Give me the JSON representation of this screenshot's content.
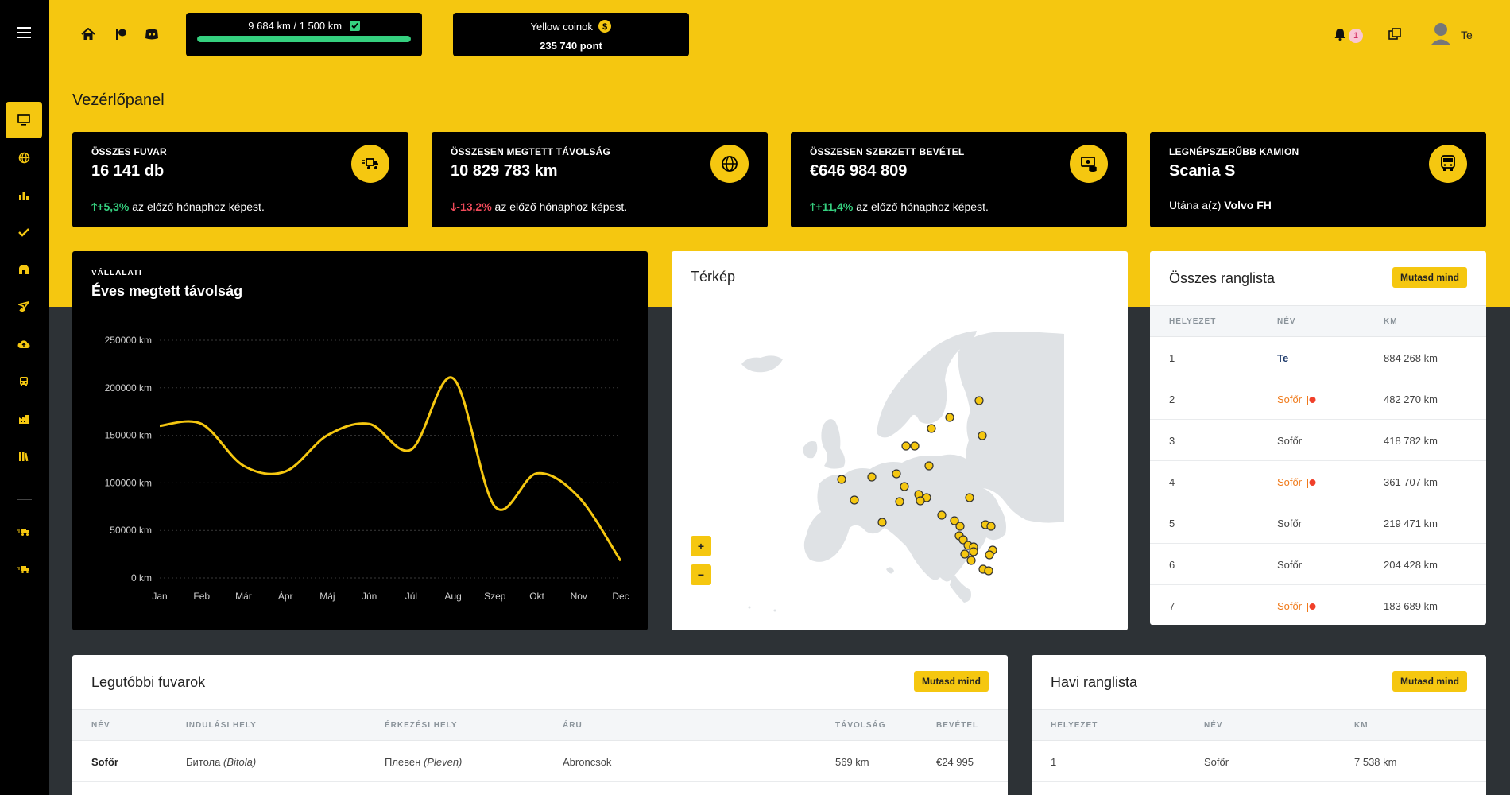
{
  "topbar": {
    "progress_text": "9 684 km / 1 500 km",
    "progress_fraction": 1.0,
    "coins_label": "Yellow coinok",
    "coins_points": "235 740 pont",
    "notification_count": "1",
    "user_name": "Te",
    "icons": [
      "menu-icon",
      "home-icon",
      "flag-icon",
      "discord-icon",
      "check-square-icon",
      "coin-icon",
      "bell-icon",
      "windows-icon",
      "user-avatar-icon"
    ]
  },
  "sidebar": {
    "items": [
      "monitor-icon",
      "globe-icon",
      "bar-chart-icon",
      "check-icon",
      "shop-icon",
      "rocket-icon",
      "cloud-upload-icon",
      "bus-icon",
      "factory-icon",
      "library-icon",
      "truck-fast-icon",
      "truck-fast-icon"
    ]
  },
  "page": {
    "title": "Vezérlőpanel"
  },
  "stats": [
    {
      "label": "ÖSSZES FUVAR",
      "value": "16 141 db",
      "change": "+5,3%",
      "direction": "up",
      "suffix": "az előző hónaphoz képest.",
      "icon": "truck-fast-icon"
    },
    {
      "label": "ÖSSZESEN MEGTETT TÁVOLSÁG",
      "value": "10 829 783 km",
      "change": "-13,2%",
      "direction": "down",
      "suffix": "az előző hónaphoz képest.",
      "icon": "globe-icon"
    },
    {
      "label": "ÖSSZESEN SZERZETT BEVÉTEL",
      "value": "€646 984 809",
      "change": "+11,4%",
      "direction": "up",
      "suffix": "az előző hónaphoz képest.",
      "icon": "money-icon"
    },
    {
      "label": "LEGNÉPSZERŰBB KAMION",
      "value": "Scania S",
      "prefix": "Utána a(z)",
      "runner_up": "Volvo FH",
      "icon": "bus-icon"
    }
  ],
  "chart": {
    "supertitle": "VÁLLALATI",
    "title": "Éves megtett távolság"
  },
  "chart_data": {
    "type": "line",
    "categories": [
      "Jan",
      "Feb",
      "Már",
      "Ápr",
      "Máj",
      "Jún",
      "Júl",
      "Aug",
      "Szep",
      "Okt",
      "Nov",
      "Dec"
    ],
    "values": [
      160000,
      162000,
      118000,
      112000,
      150000,
      162000,
      135000,
      210000,
      75000,
      110000,
      85000,
      18000
    ],
    "ylim": [
      0,
      250000
    ],
    "yticks": [
      "250000 km",
      "200000 km",
      "150000 km",
      "100000 km",
      "50000 km",
      "0 km"
    ],
    "ytick_values": [
      250000,
      200000,
      150000,
      100000,
      50000,
      0
    ],
    "color": "#f5c710",
    "grid": true
  },
  "map": {
    "title": "Térkép",
    "zoom_in": "+",
    "zoom_out": "−",
    "marker_color": "#f5c710"
  },
  "overall_leaderboard": {
    "title": "Összes ranglista",
    "button": "Mutasd mind",
    "headers": [
      "HELYEZET",
      "NÉV",
      "KM"
    ],
    "rows": [
      {
        "rank": "1",
        "name": "Te",
        "km": "884 268 km",
        "style": "self"
      },
      {
        "rank": "2",
        "name": "Sofőr",
        "km": "482 270 km",
        "style": "flag"
      },
      {
        "rank": "3",
        "name": "Sofőr",
        "km": "418 782 km",
        "style": "plain"
      },
      {
        "rank": "4",
        "name": "Sofőr",
        "km": "361 707 km",
        "style": "flag"
      },
      {
        "rank": "5",
        "name": "Sofőr",
        "km": "219 471 km",
        "style": "plain"
      },
      {
        "rank": "6",
        "name": "Sofőr",
        "km": "204 428 km",
        "style": "plain"
      },
      {
        "rank": "7",
        "name": "Sofőr",
        "km": "183 689 km",
        "style": "flag"
      }
    ]
  },
  "recent_jobs": {
    "title": "Legutóbbi fuvarok",
    "button": "Mutasd mind",
    "headers": [
      "NÉV",
      "INDULÁSI HELY",
      "ÉRKEZÉSI HELY",
      "ÁRU",
      "TÁVOLSÁG",
      "BEVÉTEL"
    ],
    "rows": [
      {
        "name": "Sofőr",
        "from": "Битола",
        "from_latin": "(Bitola)",
        "to": "Плевен",
        "to_latin": "(Pleven)",
        "cargo": "Abroncsok",
        "distance": "569 km",
        "revenue": "€24 995"
      }
    ]
  },
  "monthly_leaderboard": {
    "title": "Havi ranglista",
    "button": "Mutasd mind",
    "headers": [
      "HELYEZET",
      "NÉV",
      "KM"
    ],
    "rows": [
      {
        "rank": "1",
        "name": "Sofőr",
        "km": "7 538 km"
      }
    ]
  }
}
